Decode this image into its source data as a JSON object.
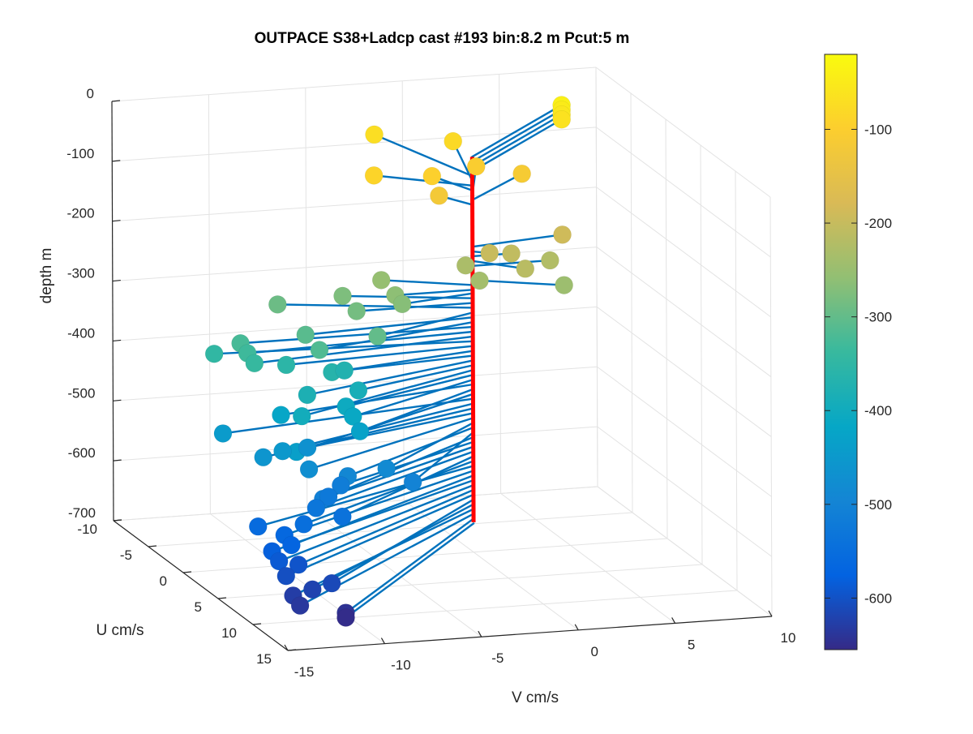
{
  "chart_data": {
    "type": "scatter",
    "title": "OUTPACE S38+Ladcp cast #193 bin:8.2 m  Pcut:5 m",
    "xlabel": "V cm/s",
    "ylabel": "U cm/s",
    "zlabel": "depth m",
    "xlim": [
      -15,
      10
    ],
    "ylim": [
      -10,
      15
    ],
    "zlim": [
      -700,
      0
    ],
    "x_ticks": [
      "-15",
      "-10",
      "-5",
      "0",
      "5",
      "10"
    ],
    "y_ticks": [
      "-10",
      "-5",
      "0",
      "5",
      "10",
      "15"
    ],
    "z_ticks": [
      "-700",
      "-600",
      "-500",
      "-400",
      "-300",
      "-200",
      "-100",
      "0"
    ],
    "grid": true,
    "colorbar": {
      "range": [
        -655,
        -20
      ],
      "ticks": [
        "-100",
        "-200",
        "-300",
        "-400",
        "-500",
        "-600"
      ],
      "colormap": "parula"
    },
    "stick_color": "#0072BD",
    "reference_line_color": "#FF0000",
    "points": [
      {
        "depth": -40,
        "v": 7.5,
        "u": -8
      },
      {
        "depth": -48,
        "v": 7.5,
        "u": -8
      },
      {
        "depth": -56,
        "v": 7.5,
        "u": -8
      },
      {
        "depth": -64,
        "v": 7.5,
        "u": -8
      },
      {
        "depth": -72,
        "v": -2,
        "u": -8.5
      },
      {
        "depth": -80,
        "v": 1.6,
        "u": -7.2
      },
      {
        "depth": -88,
        "v": -4,
        "u": -3
      },
      {
        "depth": -96,
        "v": -1,
        "u": -3
      },
      {
        "depth": -104,
        "v": 2,
        "u": -5
      },
      {
        "depth": -112,
        "v": 4,
        "u": -4
      },
      {
        "depth": -120,
        "v": -1,
        "u": -2
      },
      {
        "depth": -190,
        "v": 5,
        "u": -1
      },
      {
        "depth": -198,
        "v": 0.7,
        "u": 0.5
      },
      {
        "depth": -206,
        "v": 2,
        "u": 0
      },
      {
        "depth": -214,
        "v": 2,
        "u": 2
      },
      {
        "depth": -222,
        "v": 4,
        "u": 0
      },
      {
        "depth": -230,
        "v": 0,
        "u": -1
      },
      {
        "depth": -238,
        "v": 0,
        "u": 1
      },
      {
        "depth": -246,
        "v": 4,
        "u": 2
      },
      {
        "depth": -254,
        "v": -4,
        "u": -2
      },
      {
        "depth": -262,
        "v": -4,
        "u": 0
      },
      {
        "depth": -268,
        "v": -4,
        "u": 1
      },
      {
        "depth": -276,
        "v": -6,
        "u": -2
      },
      {
        "depth": -284,
        "v": -6,
        "u": 0
      },
      {
        "depth": -292,
        "v": -9,
        "u": -3
      },
      {
        "depth": -300,
        "v": -6,
        "u": 3
      },
      {
        "depth": -308,
        "v": -9,
        "u": 1
      },
      {
        "depth": -316,
        "v": -9,
        "u": 3
      },
      {
        "depth": -324,
        "v": -12,
        "u": 0
      },
      {
        "depth": -332,
        "v": -12,
        "u": 1
      },
      {
        "depth": -340,
        "v": -12,
        "u": 2
      },
      {
        "depth": -348,
        "v": -13,
        "u": -1
      },
      {
        "depth": -356,
        "v": -10,
        "u": 1
      },
      {
        "depth": -364,
        "v": -8,
        "u": 2
      },
      {
        "depth": -372,
        "v": -7,
        "u": 1
      },
      {
        "depth": -380,
        "v": -10,
        "u": 4
      },
      {
        "depth": -388,
        "v": -7,
        "u": 3
      },
      {
        "depth": -396,
        "v": -11,
        "u": 6
      },
      {
        "depth": -404,
        "v": -8,
        "u": 4
      },
      {
        "depth": -412,
        "v": -8,
        "u": 5
      },
      {
        "depth": -420,
        "v": -11,
        "u": 3
      },
      {
        "depth": -428,
        "v": -8,
        "u": 6
      },
      {
        "depth": -436,
        "v": -12,
        "u": 8
      },
      {
        "depth": -444,
        "v": -14,
        "u": 3
      },
      {
        "depth": -452,
        "v": -12,
        "u": 6
      },
      {
        "depth": -460,
        "v": -13,
        "u": 6
      },
      {
        "depth": -468,
        "v": -10,
        "u": 4
      },
      {
        "depth": -476,
        "v": -11,
        "u": 7
      },
      {
        "depth": -484,
        "v": -7,
        "u": 7
      },
      {
        "depth": -492,
        "v": -9,
        "u": 7
      },
      {
        "depth": -500,
        "v": -6,
        "u": 8
      },
      {
        "depth": -508,
        "v": -11,
        "u": 9
      },
      {
        "depth": -516,
        "v": -9,
        "u": 6
      },
      {
        "depth": -524,
        "v": -10,
        "u": 7
      },
      {
        "depth": -532,
        "v": -11,
        "u": 8
      },
      {
        "depth": -540,
        "v": -10,
        "u": 9
      },
      {
        "depth": -548,
        "v": -12,
        "u": 9
      },
      {
        "depth": -556,
        "v": -14,
        "u": 8
      },
      {
        "depth": -564,
        "v": -13,
        "u": 9
      },
      {
        "depth": -572,
        "v": -13,
        "u": 10
      },
      {
        "depth": -580,
        "v": -14,
        "u": 10
      },
      {
        "depth": -588,
        "v": -14,
        "u": 11
      },
      {
        "depth": -596,
        "v": -13,
        "u": 11
      },
      {
        "depth": -604,
        "v": -14,
        "u": 12
      },
      {
        "depth": -612,
        "v": -12,
        "u": 13
      },
      {
        "depth": -620,
        "v": -13,
        "u": 13
      },
      {
        "depth": -628,
        "v": -14,
        "u": 13
      },
      {
        "depth": -636,
        "v": -14,
        "u": 14
      },
      {
        "depth": -644,
        "v": -12,
        "u": 15
      },
      {
        "depth": -652,
        "v": -12,
        "u": 15
      }
    ]
  }
}
